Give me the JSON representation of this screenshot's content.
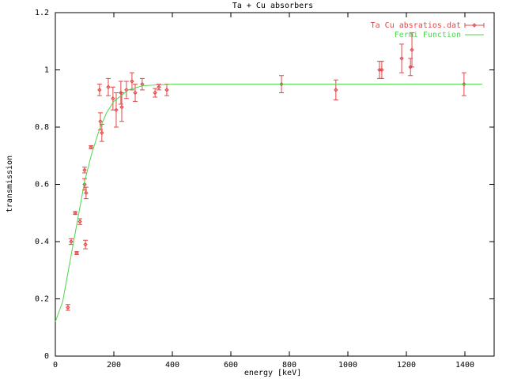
{
  "chart_data": {
    "type": "scatter",
    "title": "Ta + Cu absorbers",
    "x_label": "energy [keV]",
    "y_label": "transmission",
    "xlim": [
      0,
      1500
    ],
    "ylim": [
      0,
      1.2
    ],
    "xticks": [
      0,
      200,
      400,
      600,
      800,
      1000,
      1200,
      1400
    ],
    "yticks": [
      0,
      0.2,
      0.4,
      0.6,
      0.8,
      1,
      1.2
    ],
    "legend": "top-right",
    "series": [
      {
        "name": "Ta Cu absratios.dat",
        "type": "errorbars",
        "color": "#e04848",
        "x": [
          43,
          54,
          68,
          73,
          84,
          100,
          100,
          105,
          103,
          122,
          151,
          154,
          159,
          181,
          197,
          208,
          224,
          227,
          243,
          262,
          273,
          297,
          341,
          354,
          381,
          773,
          959,
          1108,
          1116,
          1184,
          1214,
          1219,
          1397
        ],
        "values": [
          0.17,
          0.4,
          0.5,
          0.36,
          0.47,
          0.65,
          0.6,
          0.57,
          0.39,
          0.73,
          0.93,
          0.82,
          0.78,
          0.94,
          0.9,
          0.86,
          0.92,
          0.87,
          0.93,
          0.96,
          0.92,
          0.95,
          0.92,
          0.94,
          0.93,
          0.95,
          0.93,
          1.0,
          1.0,
          1.04,
          1.01,
          1.07,
          0.95
        ],
        "errors": [
          0.01,
          0.01,
          0.005,
          0.005,
          0.01,
          0.01,
          0.02,
          0.02,
          0.015,
          0.005,
          0.02,
          0.03,
          0.03,
          0.03,
          0.04,
          0.06,
          0.04,
          0.05,
          0.03,
          0.03,
          0.03,
          0.02,
          0.015,
          0.01,
          0.02,
          0.03,
          0.035,
          0.03,
          0.03,
          0.05,
          0.03,
          0.06,
          0.04
        ]
      },
      {
        "name": "Fermi Function",
        "type": "line",
        "color": "#48d848",
        "x": [
          0,
          25,
          50,
          75,
          100,
          125,
          150,
          175,
          200,
          250,
          300,
          400,
          600,
          1000,
          1460
        ],
        "values": [
          0.12,
          0.19,
          0.33,
          0.47,
          0.61,
          0.71,
          0.79,
          0.85,
          0.89,
          0.93,
          0.945,
          0.95,
          0.95,
          0.95,
          0.95
        ]
      }
    ]
  }
}
